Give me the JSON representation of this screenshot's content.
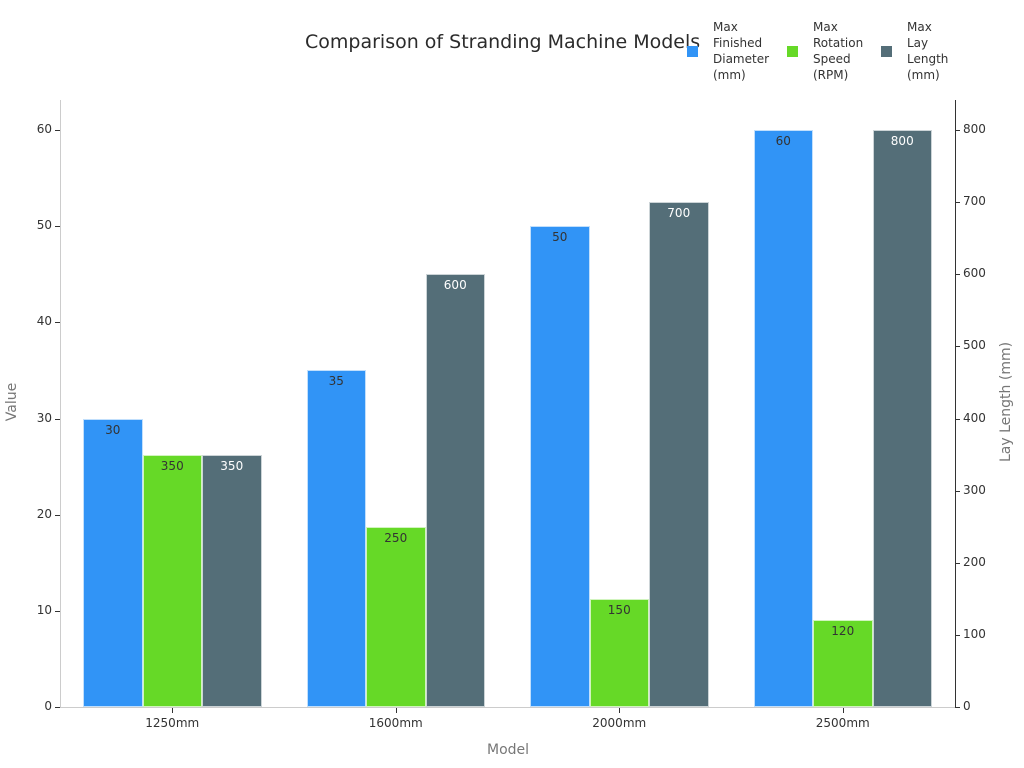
{
  "chart_data": {
    "type": "bar",
    "title": "Comparison of Stranding Machine Models",
    "xlabel": "Model",
    "ylabel": "Value",
    "y2label": "Lay Length (mm)",
    "categories": [
      "1250mm",
      "1600mm",
      "2000mm",
      "2500mm"
    ],
    "series": [
      {
        "name": "Max Finished Diameter (mm)",
        "values": [
          30,
          35,
          50,
          60
        ],
        "color": "#3194f6",
        "axis": "left",
        "label_color": "#333333"
      },
      {
        "name": "Max Rotation Speed (RPM)",
        "values": [
          350,
          250,
          150,
          120
        ],
        "color": "#66d927",
        "axis": "right",
        "label_color": "#333333"
      },
      {
        "name": "Max Lay Length (mm)",
        "values": [
          350,
          600,
          700,
          800
        ],
        "color": "#546e78",
        "axis": "right",
        "label_color": "#ffffff"
      }
    ],
    "ylim": [
      0,
      63
    ],
    "y2lim": [
      0,
      840
    ],
    "yticks": [
      0,
      10,
      20,
      30,
      40,
      50,
      60
    ],
    "y2ticks": [
      0,
      100,
      200,
      300,
      400,
      500,
      600,
      700,
      800
    ],
    "grid": false,
    "legend_position": "top-right"
  },
  "legend": [
    {
      "lines": [
        "Max",
        "Finished",
        "Diameter",
        "(mm)"
      ],
      "color": "#3194f6"
    },
    {
      "lines": [
        "Max",
        "Rotation",
        "Speed",
        "(RPM)"
      ],
      "color": "#66d927"
    },
    {
      "lines": [
        "Max",
        "Lay",
        "Length",
        "(mm)"
      ],
      "color": "#546e78"
    }
  ]
}
